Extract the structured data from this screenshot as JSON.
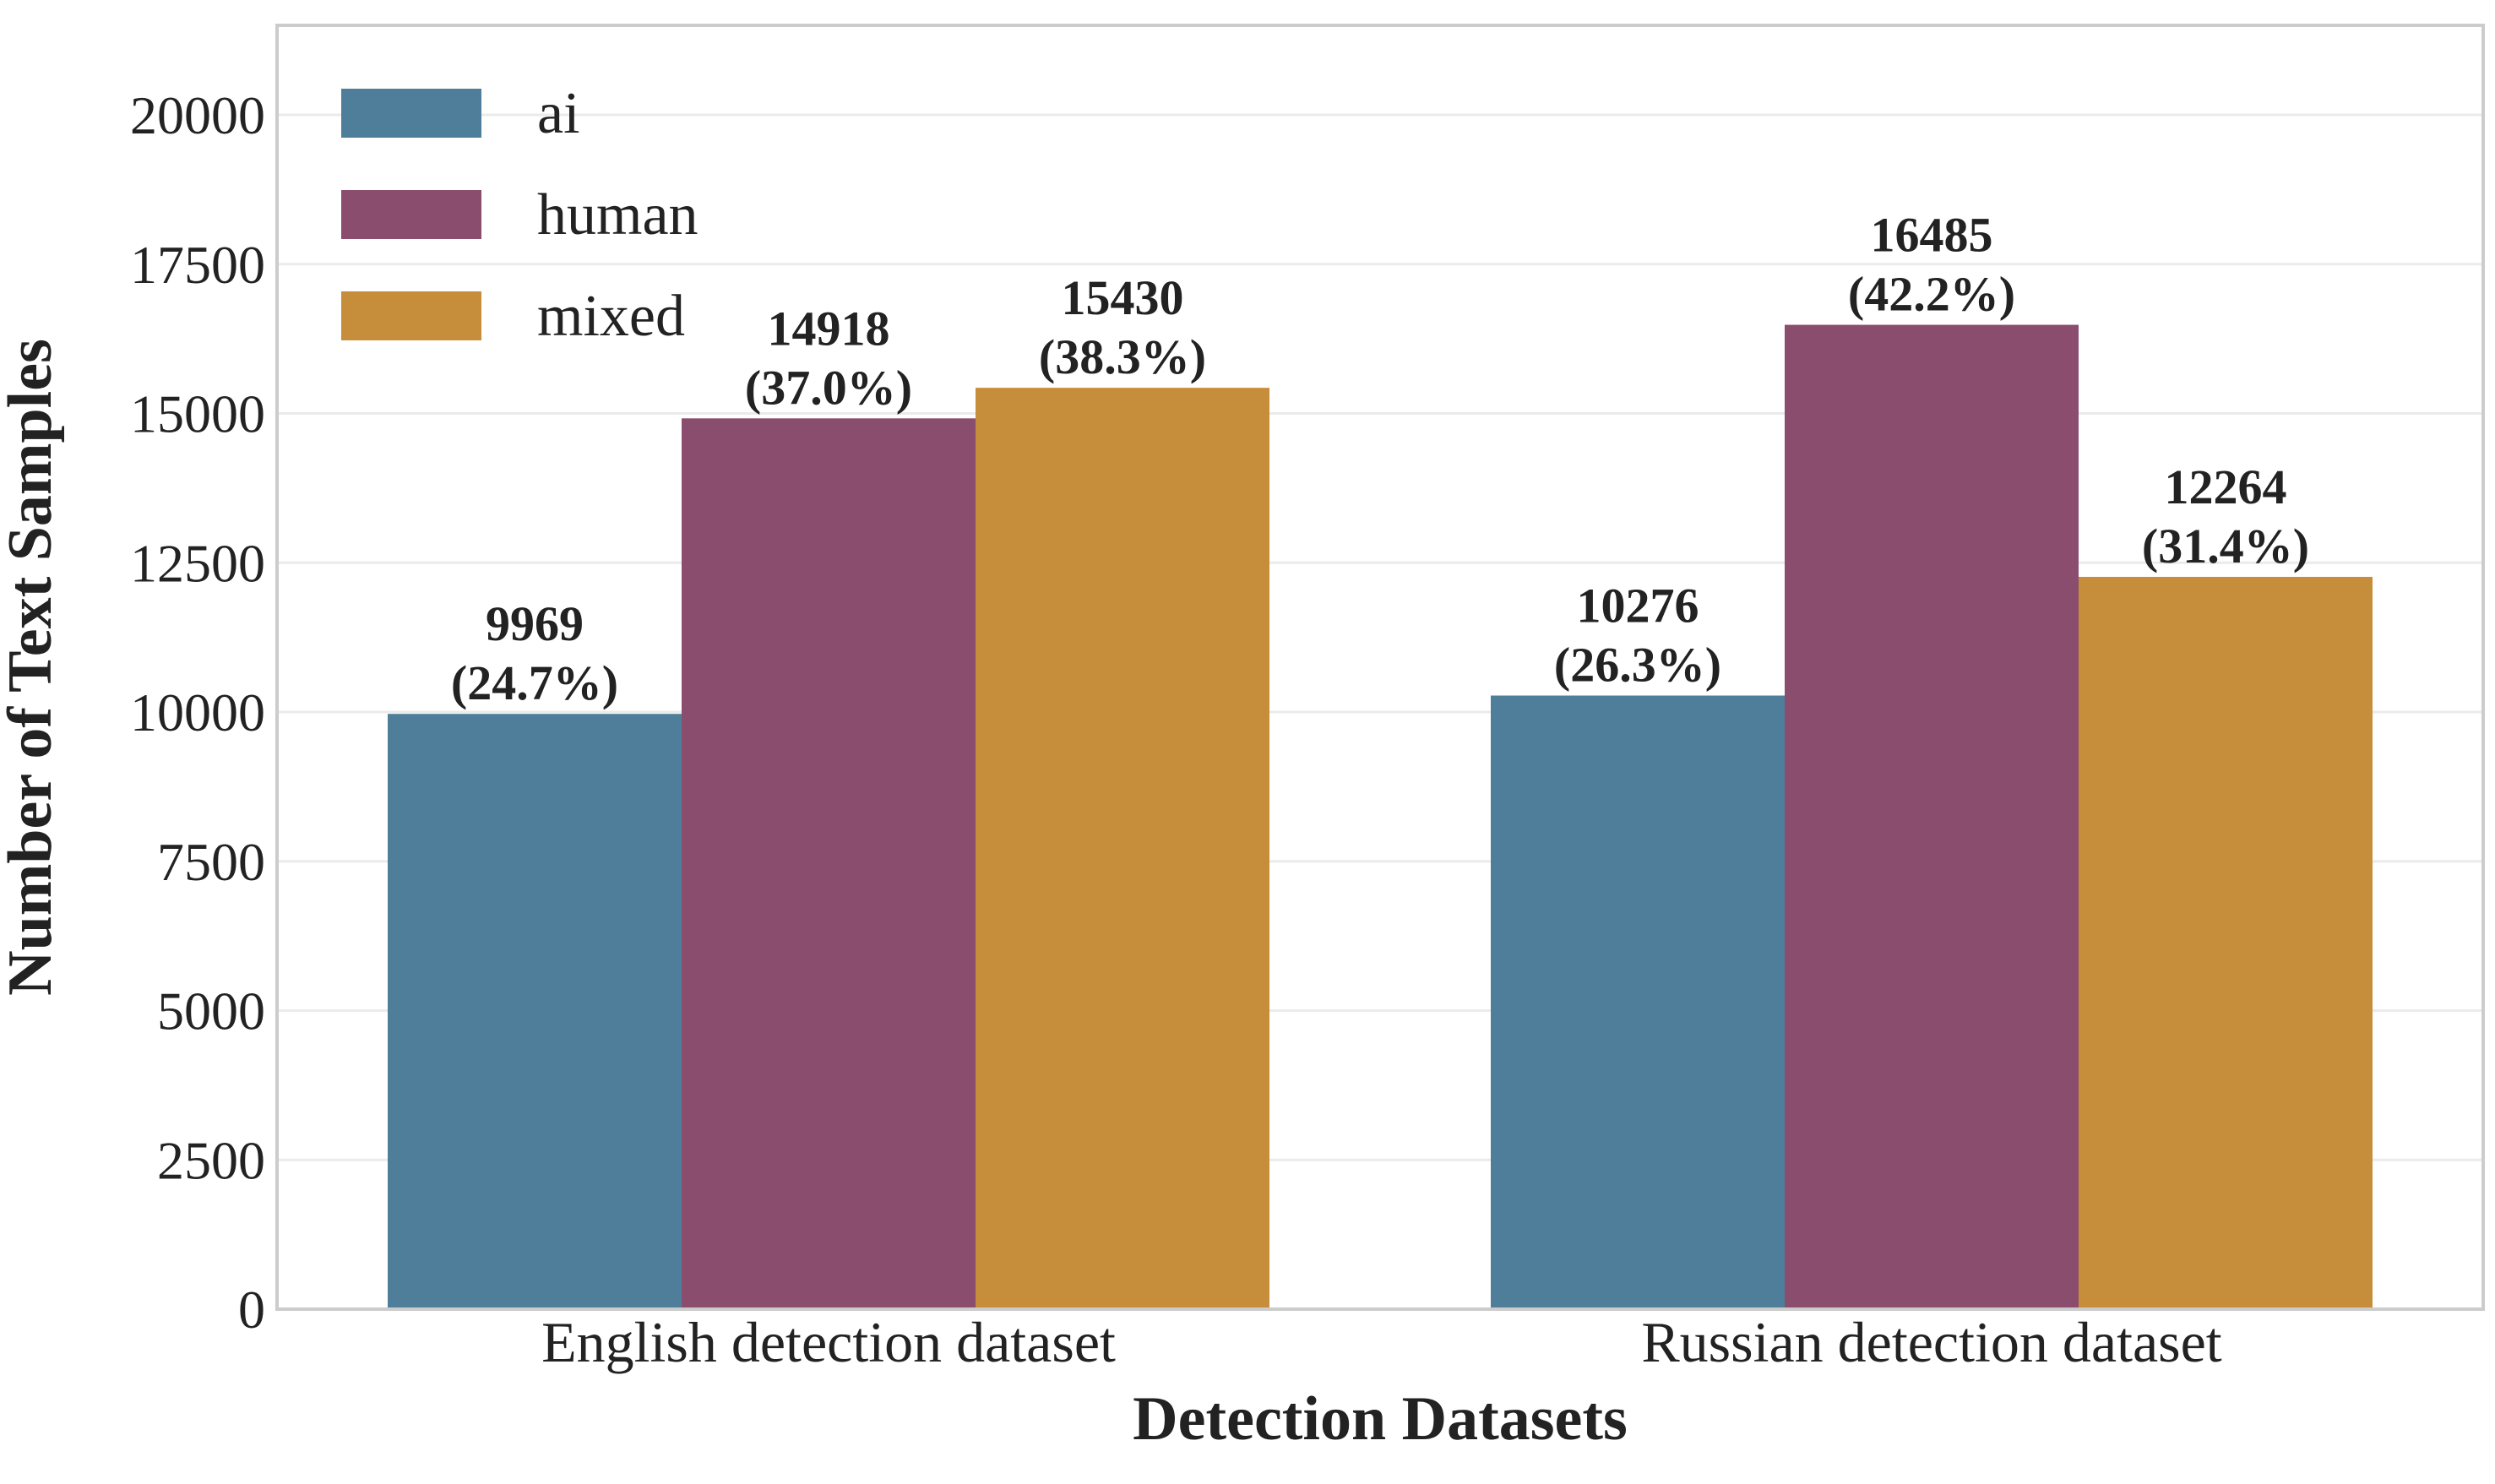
{
  "chart_data": {
    "type": "bar",
    "title": "",
    "xlabel": "Detection Datasets",
    "ylabel": "Number of Text Samples",
    "ylim": [
      0,
      21500
    ],
    "yticks": [
      0,
      2500,
      5000,
      7500,
      10000,
      12500,
      15000,
      17500,
      20000
    ],
    "grid": true,
    "legend_position": "top-left",
    "categories": [
      "English detection dataset",
      "Russian detection dataset"
    ],
    "series": [
      {
        "name": "ai",
        "color": "#4e7e99",
        "values": [
          9969,
          10276
        ],
        "labels": [
          [
            "9969",
            "(24.7%)"
          ],
          [
            "10276",
            "(26.3%)"
          ]
        ]
      },
      {
        "name": "human",
        "color": "#8a4d6e",
        "values": [
          14918,
          16485
        ],
        "labels": [
          [
            "14918",
            "(37.0%)"
          ],
          [
            "16485",
            "(42.2%)"
          ]
        ]
      },
      {
        "name": "mixed",
        "color": "#c68d3a",
        "values": [
          15430,
          12264
        ],
        "labels": [
          [
            "15430",
            "(38.3%)"
          ],
          [
            "12264",
            "(31.4%)"
          ]
        ]
      }
    ]
  }
}
